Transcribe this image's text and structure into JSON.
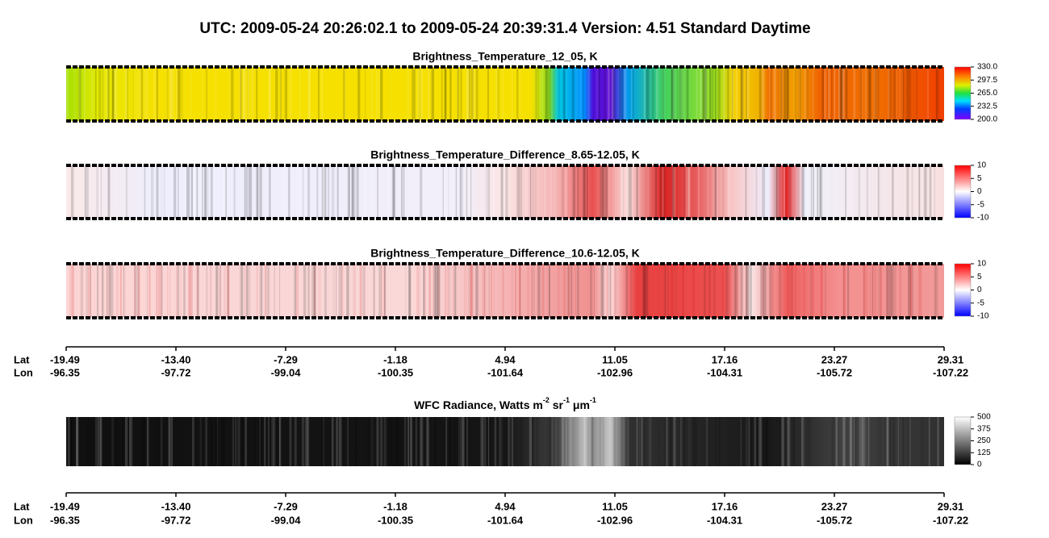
{
  "chart_data": [
    {
      "type": "heatmap",
      "title": "Brightness_Temperature_12_05, K",
      "colormap": "rainbow",
      "zlim": [
        200,
        330
      ],
      "zticks": [
        {
          "value": 330,
          "label": "330.0"
        },
        {
          "value": 297.5,
          "label": "297.5"
        },
        {
          "value": 265,
          "label": "265.0"
        },
        {
          "value": 232.5,
          "label": "232.5"
        },
        {
          "value": 200,
          "label": "200.0"
        }
      ]
    },
    {
      "type": "heatmap",
      "title": "Brightness_Temperature_Difference_8.65-12.05, K",
      "colormap": "bwr",
      "zlim": [
        -10,
        10
      ],
      "zticks": [
        10,
        5,
        0,
        -5,
        -10
      ]
    },
    {
      "type": "heatmap",
      "title": "Brightness_Temperature_Difference_10.6-12.05, K",
      "colormap": "bwr",
      "zlim": [
        -10,
        10
      ],
      "zticks": [
        10,
        5,
        0,
        -5,
        -10
      ]
    },
    {
      "type": "heatmap",
      "title": [
        "WFC Radiance, Watts m",
        "-2",
        " sr",
        "-1",
        " μm",
        "-1"
      ],
      "colormap": "gray",
      "zlim": [
        0,
        500
      ],
      "zticks": [
        500,
        375,
        250,
        125,
        0
      ]
    }
  ],
  "header": {
    "title": "UTC:  2009-05-24   20:26:02.1  to  2009-05-24   20:39:31.4    Version: 4.51  Standard Daytime"
  },
  "x_axis": {
    "lat_label": "Lat",
    "lon_label": "Lon",
    "lat": [
      "-19.49",
      "-13.40",
      "-7.29",
      "-1.18",
      "4.94",
      "11.05",
      "17.16",
      "23.27",
      "29.31"
    ],
    "lon": [
      "-96.35",
      "-97.72",
      "-99.04",
      "-100.35",
      "-101.64",
      "-102.96",
      "-104.31",
      "-105.72",
      "-107.22"
    ]
  }
}
